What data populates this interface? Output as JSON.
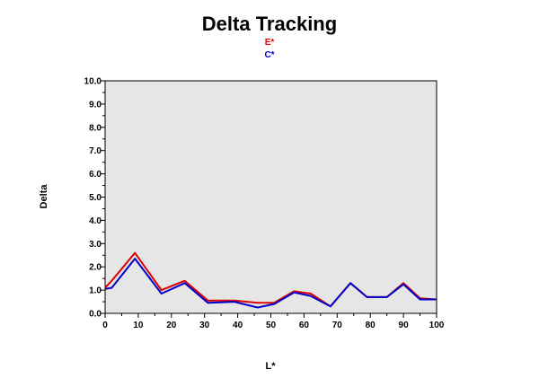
{
  "chart_data": {
    "type": "line",
    "title": "Delta Tracking",
    "xlabel": "L*",
    "ylabel": "Delta",
    "xlim": [
      0,
      100
    ],
    "ylim": [
      0,
      10
    ],
    "xticks": [
      "0",
      "10",
      "20",
      "30",
      "40",
      "50",
      "60",
      "70",
      "80",
      "90",
      "100"
    ],
    "yticks": [
      "0.0",
      "1.0",
      "2.0",
      "3.0",
      "4.0",
      "5.0",
      "6.0",
      "7.0",
      "8.0",
      "9.0",
      "10.0"
    ],
    "grid": false,
    "legend_position": "top-center",
    "plot_background": "#e6e6e6",
    "series": [
      {
        "name": "E*",
        "color": "#dd0000",
        "x": [
          0,
          2,
          9,
          17,
          24,
          31,
          39,
          46,
          51,
          57,
          62,
          68,
          74,
          79,
          85,
          90,
          95,
          100
        ],
        "y": [
          1.1,
          1.4,
          2.6,
          1.0,
          1.4,
          0.55,
          0.55,
          0.45,
          0.45,
          0.95,
          0.85,
          0.3,
          1.3,
          0.7,
          0.7,
          1.3,
          0.65,
          0.6
        ]
      },
      {
        "name": "C*",
        "color": "#0000cc",
        "x": [
          0,
          2,
          9,
          17,
          24,
          31,
          39,
          46,
          51,
          57,
          62,
          68,
          74,
          79,
          85,
          90,
          95,
          100
        ],
        "y": [
          1.05,
          1.1,
          2.35,
          0.85,
          1.3,
          0.45,
          0.5,
          0.25,
          0.4,
          0.9,
          0.75,
          0.3,
          1.3,
          0.7,
          0.7,
          1.25,
          0.6,
          0.6
        ]
      }
    ]
  }
}
